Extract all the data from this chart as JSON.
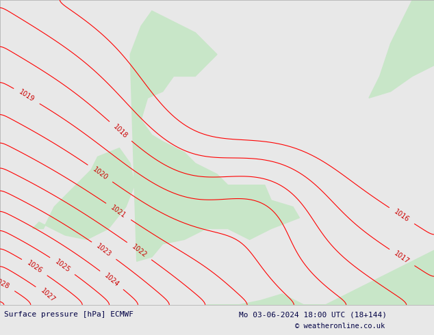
{
  "title_left": "Surface pressure [hPa] ECMWF",
  "title_right": "Mo 03-06-2024 18:00 UTC (18+144)",
  "copyright": "© weatheronline.co.uk",
  "background_color": "#e8e8e8",
  "land_color": "#c8e6c8",
  "contour_color_red": "#ff0000",
  "contour_color_blue": "#0000cc",
  "contour_color_dark": "#222222",
  "label_color_red": "#cc0000",
  "label_color_blue": "#0000cc",
  "text_color": "#000044",
  "pressure_min": 1016,
  "pressure_max": 1031,
  "pressure_step": 1
}
